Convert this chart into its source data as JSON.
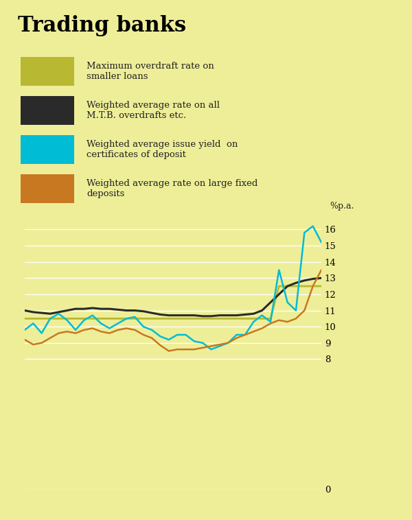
{
  "title": "Trading banks",
  "background_color": "#eeee99",
  "ylabel": "%p.a.",
  "yticks": [
    0,
    8,
    9,
    10,
    11,
    12,
    13,
    14,
    15,
    16
  ],
  "ylim": [
    0,
    17
  ],
  "legend_items": [
    {
      "label": "Maximum overdraft rate on\nsmaller loans",
      "color": "#b8b832"
    },
    {
      "label": "Weighted average rate on all\nM.T.B. overdrafts etc.",
      "color": "#2a2a2a"
    },
    {
      "label": "Weighted average issue yield  on\ncertificates of deposit",
      "color": "#00bcd4"
    },
    {
      "label": "Weighted average rate on large fixed\ndeposits",
      "color": "#c87820"
    }
  ],
  "series": {
    "overdraft_max": {
      "color": "#b8b832",
      "lw": 2.0,
      "y": [
        10.5,
        10.5,
        10.5,
        10.5,
        10.5,
        10.5,
        10.5,
        10.5,
        10.5,
        10.5,
        10.5,
        10.5,
        10.5,
        10.5,
        10.5,
        10.5,
        10.5,
        10.5,
        10.5,
        10.5,
        10.5,
        10.5,
        10.5,
        10.5,
        10.5,
        10.5,
        10.5,
        10.5,
        10.5,
        10.5,
        12.5,
        12.5,
        12.5,
        12.5,
        12.5,
        12.5
      ]
    },
    "mtb_overdraft": {
      "color": "#2a2a2a",
      "lw": 2.2,
      "y": [
        11.0,
        10.9,
        10.85,
        10.8,
        10.9,
        11.0,
        11.1,
        11.1,
        11.15,
        11.1,
        11.1,
        11.05,
        11.0,
        11.0,
        10.95,
        10.85,
        10.75,
        10.7,
        10.7,
        10.7,
        10.7,
        10.65,
        10.65,
        10.7,
        10.7,
        10.7,
        10.75,
        10.8,
        11.0,
        11.5,
        12.0,
        12.5,
        12.7,
        12.85,
        12.95,
        13.0
      ]
    },
    "cert_deposit": {
      "color": "#00bcd4",
      "lw": 1.8,
      "y": [
        9.8,
        10.2,
        9.6,
        10.5,
        10.8,
        10.4,
        9.8,
        10.4,
        10.7,
        10.2,
        9.9,
        10.2,
        10.5,
        10.6,
        10.0,
        9.8,
        9.4,
        9.2,
        9.5,
        9.5,
        9.1,
        9.0,
        8.6,
        8.8,
        9.0,
        9.5,
        9.5,
        10.3,
        10.7,
        10.3,
        13.5,
        11.5,
        11.0,
        15.8,
        16.2,
        15.2
      ]
    },
    "large_fixed": {
      "color": "#c87820",
      "lw": 1.8,
      "y": [
        9.2,
        8.9,
        9.0,
        9.3,
        9.6,
        9.7,
        9.6,
        9.8,
        9.9,
        9.7,
        9.6,
        9.8,
        9.9,
        9.8,
        9.5,
        9.3,
        8.85,
        8.5,
        8.6,
        8.6,
        8.6,
        8.7,
        8.8,
        8.9,
        9.0,
        9.3,
        9.5,
        9.7,
        9.9,
        10.2,
        10.4,
        10.3,
        10.5,
        11.0,
        12.5,
        13.5
      ]
    }
  }
}
